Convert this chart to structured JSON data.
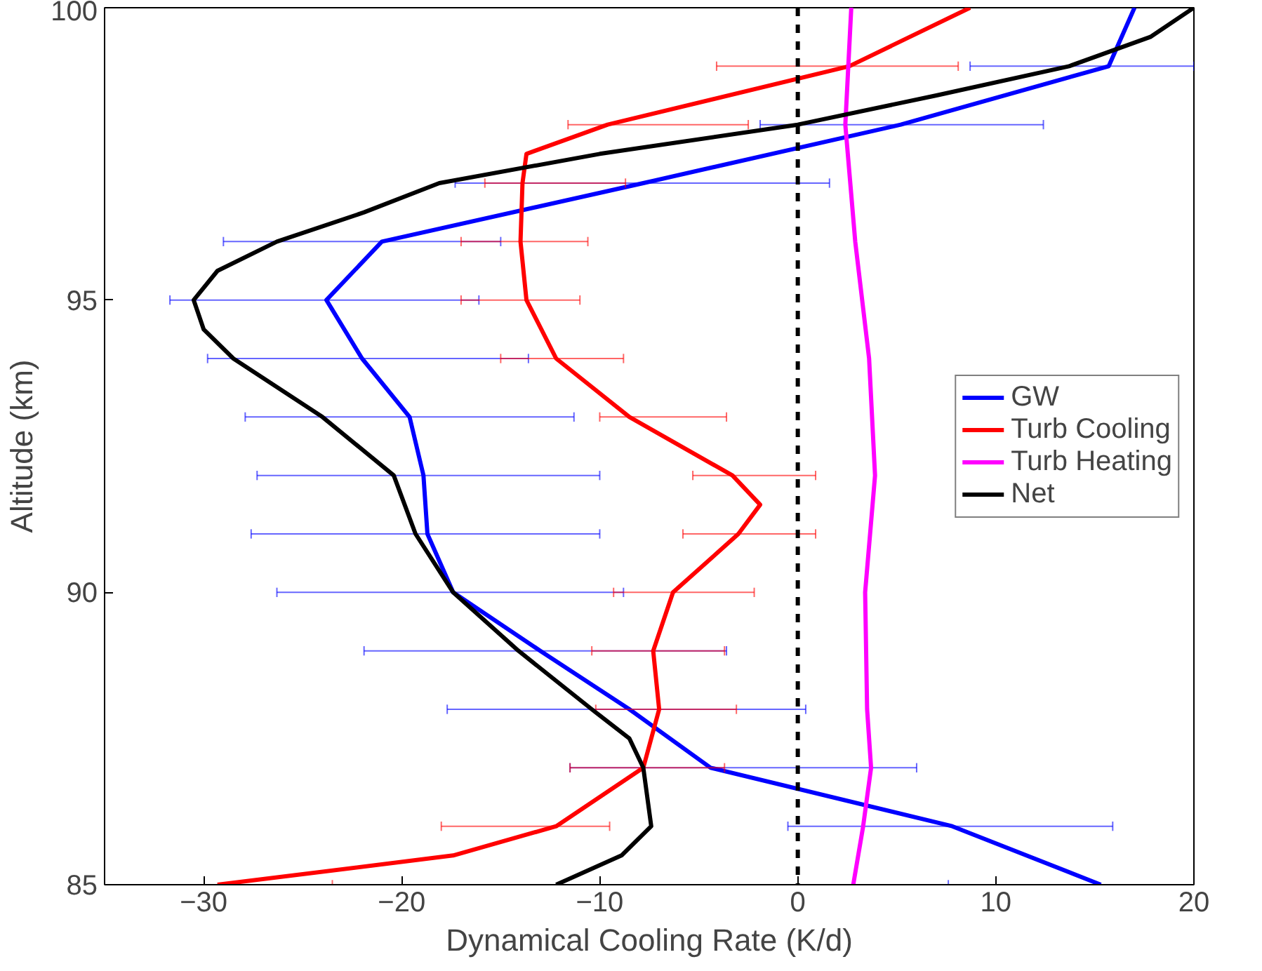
{
  "chart_data": {
    "type": "line",
    "xlabel": "Dynamical Cooling Rate (K/d)",
    "ylabel": "Altitude (km)",
    "xlim": [
      -35,
      20
    ],
    "xticks": [
      -30,
      -20,
      -10,
      0,
      10,
      20
    ],
    "ylim": [
      85,
      100
    ],
    "yticks": [
      85,
      90,
      95,
      100
    ],
    "grid": false,
    "legend": "right",
    "line_style": "solid",
    "marker": "none",
    "ref_lines": [
      {
        "axis": "x",
        "value": 0,
        "color": "#000000",
        "line_style": "dashed"
      }
    ],
    "series": [
      {
        "name": "GW",
        "color": "#0000ff",
        "x": [
          17,
          15.7,
          5.2,
          -7.8,
          -21,
          -23.8,
          -22,
          -19.6,
          -18.9,
          -18.7,
          -17.4,
          -13,
          -8.5,
          -4.4,
          7.8,
          15.3
        ],
        "values": [
          100,
          99,
          98,
          97,
          96,
          95,
          94,
          93,
          92,
          91,
          90,
          89,
          88,
          87,
          86,
          85
        ],
        "xerrors": [
          null,
          [
            8.7,
            20
          ],
          [
            -1.9,
            12.4
          ],
          [
            -17.3,
            1.6
          ],
          [
            -29,
            -15
          ],
          [
            -31.7,
            -16.1
          ],
          [
            -29.8,
            -13.6
          ],
          [
            -27.9,
            -11.3
          ],
          [
            -27.3,
            -10
          ],
          [
            -27.6,
            -10
          ],
          [
            -26.3,
            -8.8
          ],
          [
            -21.9,
            -3.6
          ],
          [
            -17.7,
            0.4
          ],
          [
            -11.5,
            6
          ],
          [
            -0.5,
            15.9
          ],
          [
            7.6,
            20
          ]
        ]
      },
      {
        "name": "Turb Cooling",
        "color": "#ff0000",
        "x": [
          8.7,
          2.6,
          -9.6,
          -13.7,
          -13.9,
          -14,
          -13.7,
          -12.2,
          -8.5,
          -3.3,
          -1.9,
          -3,
          -6.3,
          -7.3,
          -7,
          -7.8,
          -12.2,
          -17.4,
          -29.3
        ],
        "values": [
          100,
          99,
          98,
          97.5,
          97,
          96,
          95,
          94,
          93,
          92,
          91.5,
          91,
          90,
          89,
          88,
          87,
          86,
          85.5,
          85
        ],
        "xerrors": [
          null,
          [
            -4.1,
            8.1
          ],
          [
            -11.6,
            -2.5
          ],
          null,
          [
            -15.8,
            -8.7
          ],
          [
            -17,
            -10.6
          ],
          [
            -17,
            -11
          ],
          [
            -15,
            -8.8
          ],
          [
            -10,
            -3.6
          ],
          [
            -5.3,
            0.9
          ],
          null,
          [
            -5.8,
            0.9
          ],
          [
            -9.3,
            -2.2
          ],
          [
            -10.4,
            -3.7
          ],
          [
            -10.2,
            -3.1
          ],
          [
            -11.5,
            -3.7
          ],
          [
            -18,
            -9.5
          ],
          null,
          [
            -35,
            -23.5
          ]
        ]
      },
      {
        "name": "Turb Heating",
        "color": "#ff00ff",
        "x": [
          2.7,
          2.4,
          2.9,
          3.6,
          3.9,
          3.4,
          3.5,
          3.7,
          3.3,
          2.8
        ],
        "values": [
          100,
          98,
          96,
          94,
          92,
          90,
          88,
          87,
          86,
          85
        ]
      },
      {
        "name": "Net",
        "color": "#000000",
        "x": [
          20,
          17.8,
          13.7,
          7,
          0,
          -10,
          -18.1,
          -21.9,
          -26.3,
          -29.3,
          -30.5,
          -30,
          -28.5,
          -24,
          -20.4,
          -19.3,
          -17.4,
          -14.1,
          -10.4,
          -8.5,
          -7.8,
          -7.4,
          -8.9,
          -12.2
        ],
        "values": [
          100,
          99.5,
          99,
          98.5,
          98,
          97.5,
          97,
          96.5,
          96,
          95.5,
          95,
          94.5,
          94,
          93,
          92,
          91,
          90,
          89,
          88,
          87.5,
          87,
          86,
          85.5,
          85
        ]
      }
    ]
  }
}
